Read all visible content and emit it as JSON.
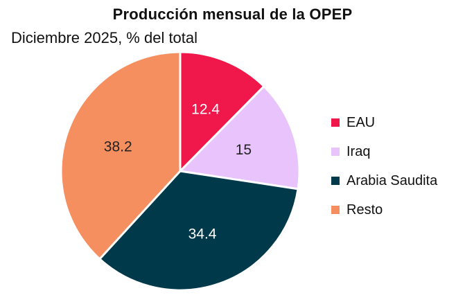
{
  "chart_data": {
    "type": "pie",
    "title": "Producción mensual de la OPEP",
    "subtitle": "Diciembre 2025, % del total",
    "slices": [
      {
        "label": "EAU",
        "value": 12.4,
        "value_label": "12.4",
        "color": "#f0174a",
        "label_color": "#ffffff"
      },
      {
        "label": "Iraq",
        "value": 15,
        "value_label": "15",
        "color": "#e9c3fb",
        "label_color": "#222222"
      },
      {
        "label": "Arabia Saudita",
        "value": 34.4,
        "value_label": "34.4",
        "color": "#003a4a",
        "label_color": "#ffffff"
      },
      {
        "label": "Resto",
        "value": 38.2,
        "value_label": "38.2",
        "color": "#f68f5f",
        "label_color": "#222222"
      }
    ],
    "start": "top",
    "direction": "clockwise",
    "legend_position": "right"
  }
}
